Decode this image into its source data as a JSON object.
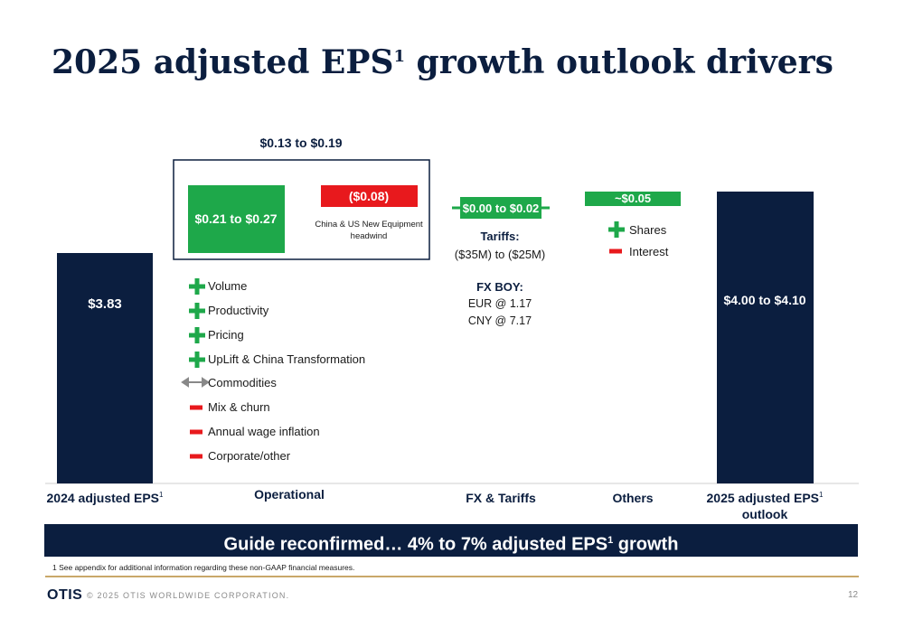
{
  "slide": {
    "title": "2025 adjusted EPS",
    "title_sup": "1",
    "title_rest": " growth outlook drivers",
    "banner_text": "Guide reconfirmed… 4% to 7% adjusted EPS",
    "banner_sup": "1",
    "banner_rest": " growth",
    "footnote": "1 See appendix for additional information regarding these non-GAAP financial measures.",
    "logo": "OTIS",
    "copyright": "© 2025 OTIS WORLDWIDE CORPORATION.",
    "page_number": "12"
  },
  "colors": {
    "navy": "#0b1e3f",
    "green": "#1ea84a",
    "red": "#e8191d",
    "gold_rule": "#c9a86a"
  },
  "chart_data": {
    "type": "bar",
    "subtype": "waterfall",
    "categories": [
      "2024 adjusted EPS",
      "Operational",
      "FX & Tariffs",
      "Others",
      "2025 adjusted EPS outlook"
    ],
    "category_sups": [
      "1",
      "",
      "",
      "",
      "1"
    ],
    "category_line2": [
      "",
      "",
      "",
      "",
      "outlook"
    ],
    "category_line1": [
      "2024 adjusted EPS",
      "Operational",
      "FX & Tariffs",
      "Others",
      "2025 adjusted EPS"
    ],
    "unit": "$ per share",
    "bars": [
      {
        "category": "2024 adjusted EPS",
        "kind": "total",
        "value": 3.83,
        "label": "$3.83"
      },
      {
        "category": "Operational",
        "kind": "increase",
        "range": [
          0.21,
          0.27
        ],
        "label": "$0.21 to $0.27"
      },
      {
        "category": "Operational",
        "kind": "decrease",
        "value": -0.08,
        "label": "($0.08)",
        "note": "China & US New Equipment headwind"
      },
      {
        "category": "FX & Tariffs",
        "kind": "range",
        "range": [
          0.0,
          0.02
        ],
        "label": "$0.00 to $0.02"
      },
      {
        "category": "Others",
        "kind": "increase",
        "value": 0.05,
        "label": "~$0.05"
      },
      {
        "category": "2025 adjusted EPS outlook",
        "kind": "total",
        "range": [
          4.0,
          4.1
        ],
        "label": "$4.00 to $4.10"
      }
    ],
    "operational_net_label": "$0.13 to $0.19",
    "operational_drivers": [
      {
        "sign": "plus",
        "label": "Volume"
      },
      {
        "sign": "plus",
        "label": "Productivity"
      },
      {
        "sign": "plus",
        "label": "Pricing"
      },
      {
        "sign": "plus",
        "label": "UpLift & China Transformation"
      },
      {
        "sign": "neutral",
        "label": "Commodities"
      },
      {
        "sign": "minus",
        "label": "Mix & churn"
      },
      {
        "sign": "minus",
        "label": "Annual wage inflation"
      },
      {
        "sign": "minus",
        "label": "Corporate/other"
      }
    ],
    "fx_tariffs_notes": {
      "tariffs_heading": "Tariffs:",
      "tariffs_value": "($35M) to ($25M)",
      "fx_heading": "FX BOY:",
      "fx_lines": [
        "EUR @ 1.17",
        "CNY @ 7.17"
      ]
    },
    "others_drivers": [
      {
        "sign": "plus",
        "label": "Shares"
      },
      {
        "sign": "minus",
        "label": "Interest"
      }
    ]
  }
}
